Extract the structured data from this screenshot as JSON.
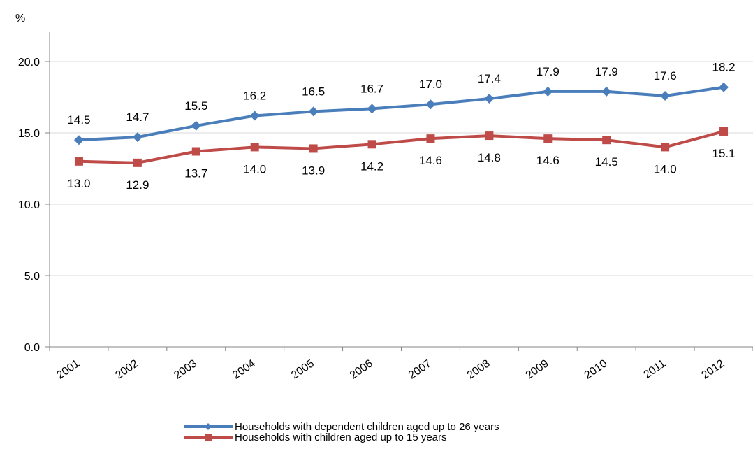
{
  "chart_data": {
    "type": "line",
    "ylabel": "%",
    "ylim": [
      0,
      20
    ],
    "yticks": [
      "0.0",
      "5.0",
      "10.0",
      "15.0",
      "20.0"
    ],
    "categories": [
      "2001",
      "2002",
      "2003",
      "2004",
      "2005",
      "2006",
      "2007",
      "2008",
      "2009",
      "2010",
      "2011",
      "2012"
    ],
    "grid": "horizontal",
    "legend_position": "bottom",
    "series": [
      {
        "name": "Households with dependent children aged up to 26 years",
        "color": "#4a7ebb",
        "marker": "diamond",
        "values": [
          14.5,
          14.7,
          15.5,
          16.2,
          16.5,
          16.7,
          17.0,
          17.4,
          17.9,
          17.9,
          17.6,
          18.2
        ],
        "labels": [
          "14.5",
          "14.7",
          "15.5",
          "16.2",
          "16.5",
          "16.7",
          "17.0",
          "17.4",
          "17.9",
          "17.9",
          "17.6",
          "18.2"
        ],
        "label_side": "above"
      },
      {
        "name": "Households with children aged up to 15 years",
        "color": "#be4b48",
        "marker": "square",
        "values": [
          13.0,
          12.9,
          13.7,
          14.0,
          13.9,
          14.2,
          14.6,
          14.8,
          14.6,
          14.5,
          14.0,
          15.1
        ],
        "labels": [
          "13.0",
          "12.9",
          "13.7",
          "14.0",
          "13.9",
          "14.2",
          "14.6",
          "14.8",
          "14.6",
          "14.5",
          "14.0",
          "15.1"
        ],
        "label_side": "below"
      }
    ]
  }
}
